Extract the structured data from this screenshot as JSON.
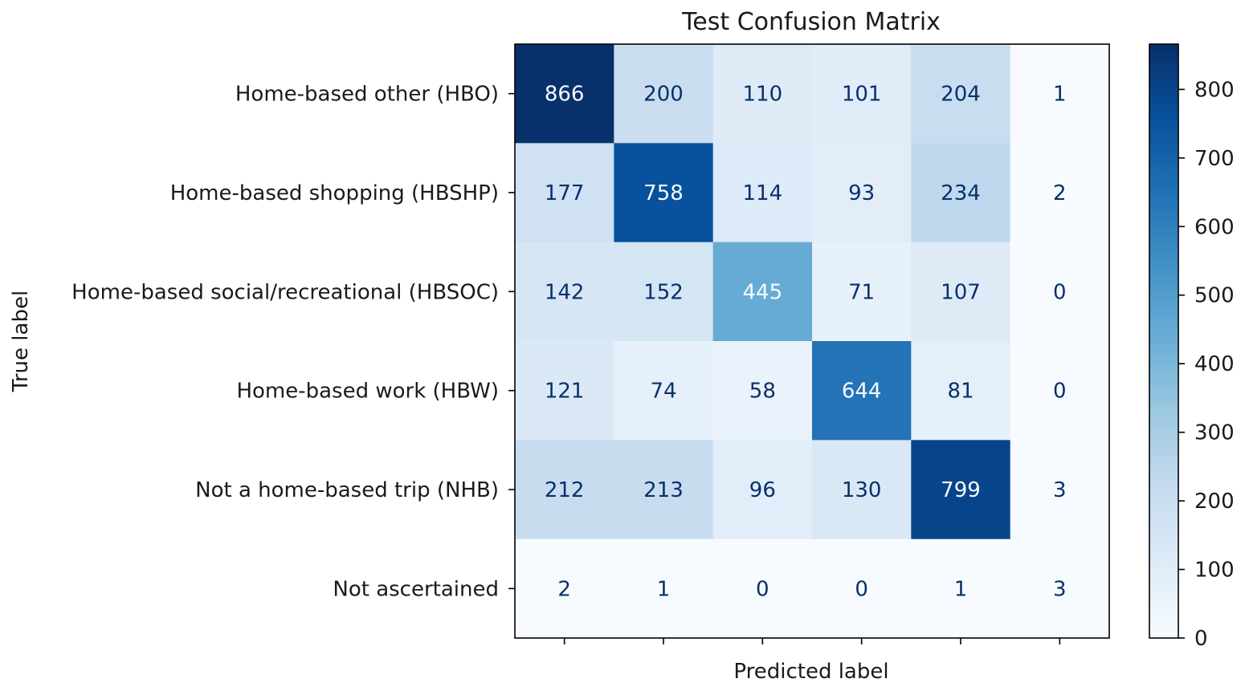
{
  "chart_data": {
    "type": "heatmap",
    "title": "Test Confusion Matrix",
    "xlabel": "Predicted label",
    "ylabel": "True label",
    "y_categories": [
      "Home-based other (HBO)",
      "Home-based shopping (HBSHP)",
      "Home-based social/recreational (HBSOC)",
      "Home-based work (HBW)",
      "Not a home-based trip (NHB)",
      "Not ascertained"
    ],
    "x_tick_labels_visible": false,
    "values": [
      [
        866,
        200,
        110,
        101,
        204,
        1
      ],
      [
        177,
        758,
        114,
        93,
        234,
        2
      ],
      [
        142,
        152,
        445,
        71,
        107,
        0
      ],
      [
        121,
        74,
        58,
        644,
        81,
        0
      ],
      [
        212,
        213,
        96,
        130,
        799,
        3
      ],
      [
        2,
        1,
        0,
        0,
        1,
        3
      ]
    ],
    "colormap": "Blues",
    "color_range": [
      0,
      866
    ],
    "colorbar_ticks": [
      0,
      100,
      200,
      300,
      400,
      500,
      600,
      700,
      800
    ],
    "grid": false
  }
}
